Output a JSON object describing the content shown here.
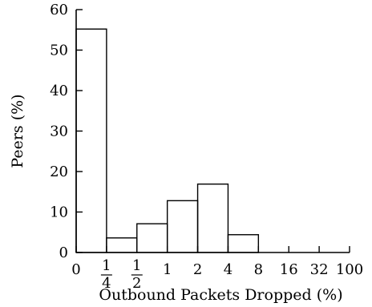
{
  "chart_data": {
    "type": "bar",
    "title": "",
    "xlabel": "Outbound Packets Dropped (%)",
    "ylabel": "Peers (%)",
    "ylim": [
      0,
      60
    ],
    "yticks": [
      "0",
      "10",
      "20",
      "30",
      "40",
      "50",
      "60"
    ],
    "xticks": [
      {
        "num": "0"
      },
      {
        "num": "1",
        "den": "4"
      },
      {
        "num": "1",
        "den": "2"
      },
      {
        "num": "1"
      },
      {
        "num": "2"
      },
      {
        "num": "4"
      },
      {
        "num": "8"
      },
      {
        "num": "16"
      },
      {
        "num": "32"
      },
      {
        "num": "100"
      }
    ],
    "bins": [
      {
        "from": "0",
        "to": "1/4",
        "value": 55.2
      },
      {
        "from": "1/4",
        "to": "1/2",
        "value": 3.6
      },
      {
        "from": "1/2",
        "to": "1",
        "value": 7.1
      },
      {
        "from": "1",
        "to": "2",
        "value": 12.8
      },
      {
        "from": "2",
        "to": "4",
        "value": 16.9
      },
      {
        "from": "4",
        "to": "8",
        "value": 4.4
      },
      {
        "from": "8",
        "to": "16",
        "value": 0
      },
      {
        "from": "16",
        "to": "32",
        "value": 0
      },
      {
        "from": "32",
        "to": "100",
        "value": 0
      }
    ],
    "grid": false,
    "legend": "none"
  }
}
